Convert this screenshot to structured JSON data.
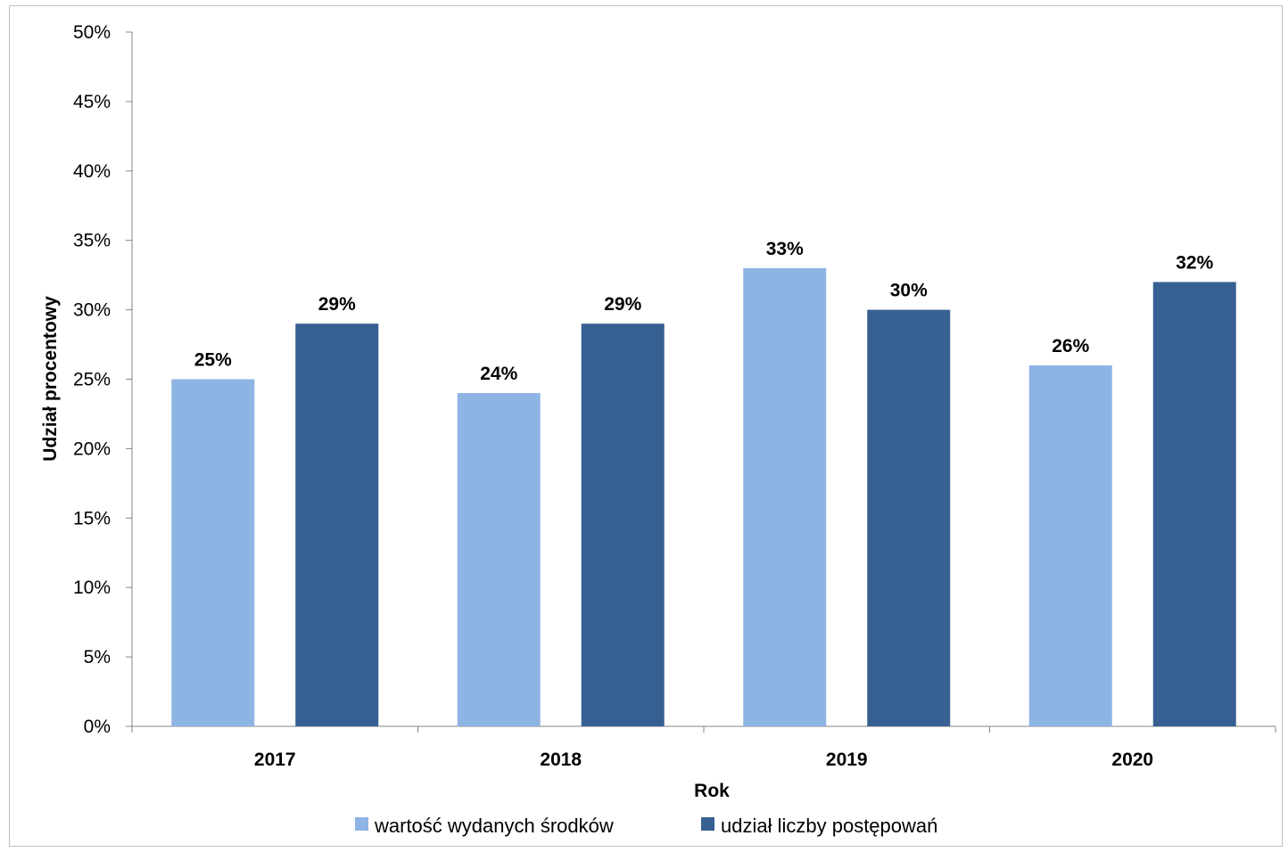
{
  "chart_data": {
    "type": "bar",
    "categories": [
      "2017",
      "2018",
      "2019",
      "2020"
    ],
    "series": [
      {
        "name": "wartość wydanych środków",
        "values": [
          25,
          24,
          33,
          26
        ],
        "color": "#8eb4e3"
      },
      {
        "name": "udział liczby postępowań",
        "values": [
          29,
          29,
          30,
          32
        ],
        "color": "#376092"
      }
    ],
    "value_format": "percent",
    "xlabel": "Rok",
    "ylabel": "Udział procentowy",
    "ylim": [
      0,
      50
    ],
    "ytick_step": 5,
    "yticks": [
      "0%",
      "5%",
      "10%",
      "15%",
      "20%",
      "25%",
      "30%",
      "35%",
      "40%",
      "45%",
      "50%"
    ],
    "data_labels": [
      [
        "25%",
        "24%",
        "33%",
        "26%"
      ],
      [
        "29%",
        "29%",
        "30%",
        "32%"
      ]
    ],
    "grid": false,
    "legend_position": "bottom"
  }
}
